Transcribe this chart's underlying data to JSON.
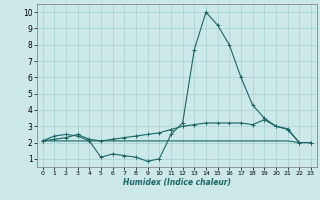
{
  "xlabel": "Humidex (Indice chaleur)",
  "background_color": "#cce8e8",
  "grid_color": "#aed4d4",
  "line_color": "#1a6666",
  "xlim": [
    -0.5,
    23.5
  ],
  "ylim": [
    0.5,
    10.5
  ],
  "xticks": [
    0,
    1,
    2,
    3,
    4,
    5,
    6,
    7,
    8,
    9,
    10,
    11,
    12,
    13,
    14,
    15,
    16,
    17,
    18,
    19,
    20,
    21,
    22,
    23
  ],
  "yticks": [
    1,
    2,
    3,
    4,
    5,
    6,
    7,
    8,
    9,
    10
  ],
  "line1_x": [
    0,
    1,
    2,
    3,
    4,
    5,
    6,
    7,
    8,
    9,
    10,
    11,
    12,
    13,
    14,
    15,
    16,
    17,
    18,
    19,
    20,
    21,
    22,
    23
  ],
  "line1_y": [
    2.1,
    2.4,
    2.5,
    2.4,
    2.1,
    1.1,
    1.3,
    1.2,
    1.1,
    0.85,
    1.0,
    2.5,
    3.2,
    7.7,
    10.0,
    9.2,
    8.0,
    6.0,
    4.3,
    3.5,
    3.0,
    2.8,
    2.0,
    2.0
  ],
  "line2_x": [
    0,
    1,
    2,
    3,
    4,
    5,
    6,
    7,
    8,
    9,
    10,
    11,
    12,
    13,
    14,
    15,
    16,
    17,
    18,
    19,
    20,
    21,
    22,
    23
  ],
  "line2_y": [
    2.1,
    2.2,
    2.3,
    2.5,
    2.2,
    2.1,
    2.2,
    2.3,
    2.4,
    2.5,
    2.6,
    2.8,
    3.0,
    3.1,
    3.2,
    3.2,
    3.2,
    3.2,
    3.1,
    3.4,
    3.0,
    2.85,
    2.0,
    2.0
  ],
  "line3_x": [
    0,
    1,
    2,
    3,
    4,
    5,
    6,
    7,
    8,
    9,
    10,
    11,
    12,
    13,
    14,
    15,
    16,
    17,
    18,
    19,
    20,
    21,
    22,
    23
  ],
  "line3_y": [
    2.1,
    2.1,
    2.1,
    2.1,
    2.1,
    2.1,
    2.1,
    2.1,
    2.1,
    2.1,
    2.1,
    2.1,
    2.1,
    2.1,
    2.1,
    2.1,
    2.1,
    2.1,
    2.1,
    2.1,
    2.1,
    2.1,
    2.0,
    2.0
  ]
}
